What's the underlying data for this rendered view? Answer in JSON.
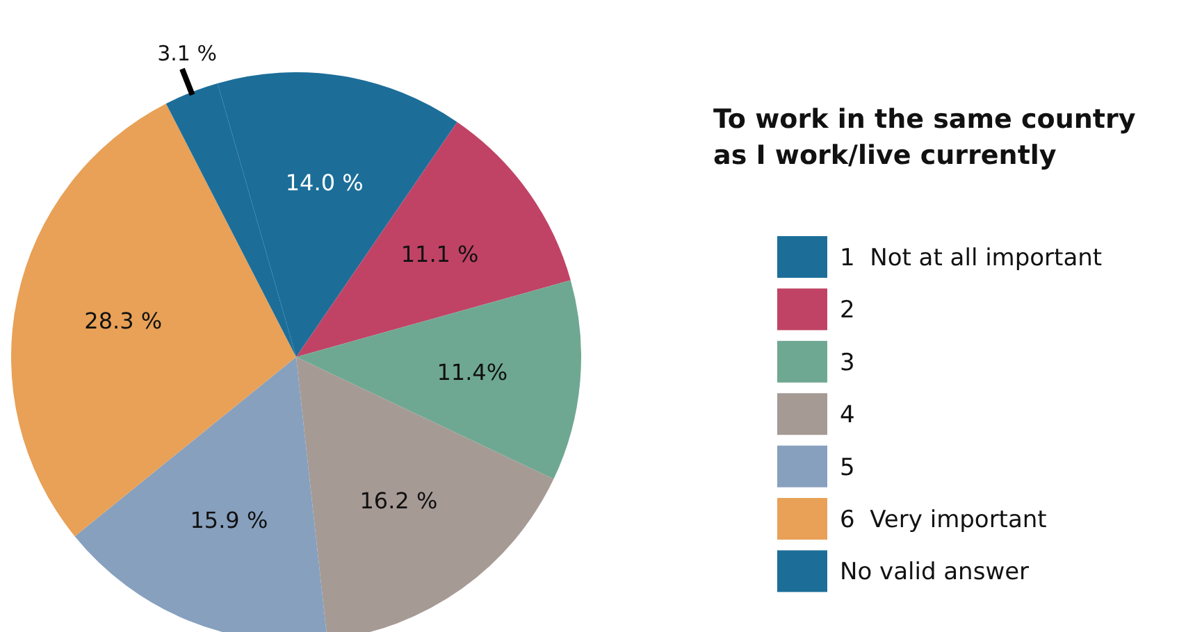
{
  "chart_data": {
    "type": "pie",
    "title": "To work in the same country as I work/live currently",
    "categories": [
      "1  Not at all important",
      "2",
      "3",
      "4",
      "5",
      "6  Very important",
      "No valid answer"
    ],
    "values": [
      14.0,
      11.1,
      11.4,
      16.2,
      15.9,
      28.3,
      3.1
    ],
    "colors": [
      "#1c6e99",
      "#c04366",
      "#6fa892",
      "#a69a95",
      "#87a0be",
      "#e8a157",
      "#1c6e99"
    ],
    "value_labels": [
      "14.0 %",
      "11.1 %",
      "11.4%",
      "16.2 %",
      "15.9 %",
      "28.3 %",
      "3.1 %"
    ],
    "legend": "right"
  }
}
